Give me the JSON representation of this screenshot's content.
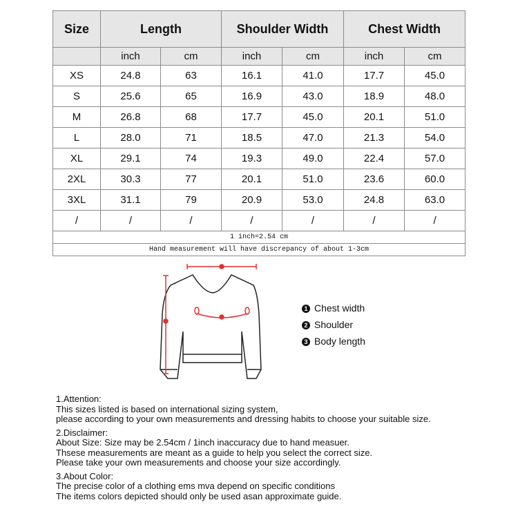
{
  "table": {
    "headers": [
      "Size",
      "Length",
      "Shoulder Width",
      "Chest Width"
    ],
    "units": [
      "inch",
      "cm",
      "inch",
      "cm",
      "inch",
      "cm"
    ],
    "rows": [
      [
        "XS",
        "24.8",
        "63",
        "16.1",
        "41.0",
        "17.7",
        "45.0"
      ],
      [
        "S",
        "25.6",
        "65",
        "16.9",
        "43.0",
        "18.9",
        "48.0"
      ],
      [
        "M",
        "26.8",
        "68",
        "17.7",
        "45.0",
        "20.1",
        "51.0"
      ],
      [
        "L",
        "28.0",
        "71",
        "18.5",
        "47.0",
        "21.3",
        "54.0"
      ],
      [
        "XL",
        "29.1",
        "74",
        "19.3",
        "49.0",
        "22.4",
        "57.0"
      ],
      [
        "2XL",
        "30.3",
        "77",
        "20.1",
        "51.0",
        "23.6",
        "60.0"
      ],
      [
        "3XL",
        "31.1",
        "79",
        "20.9",
        "53.0",
        "24.8",
        "63.0"
      ],
      [
        "/",
        "/",
        "/",
        "/",
        "/",
        "/",
        "/"
      ]
    ],
    "conversion": "1 inch=2.54 cm",
    "discrepancy": "Hand measurement will have discrepancy of about 1-3cm"
  },
  "legend": [
    {
      "num": "1",
      "label": "Chest width"
    },
    {
      "num": "2",
      "label": "Shoulder"
    },
    {
      "num": "3",
      "label": "Body length"
    }
  ],
  "measure_color": "#e03030",
  "notes": [
    {
      "title": "1.Attention:",
      "lines": [
        "This sizes listed is based on international sizing system,",
        "please according to your own measurements and dressing habits to choose your suitable size."
      ]
    },
    {
      "title": "2.Disclaimer:",
      "lines": [
        "About Size: Size may be 2.54cm / 1inch inaccuracy due to hand measuer.",
        "Thsese measurements are meant as a guide to help you select the correct size.",
        "Please take your own measurements and choose your size accordingly."
      ]
    },
    {
      "title": "3.About Color:",
      "lines": [
        "The precise color of a clothing ems mva depend on specific conditions",
        "The items colors depicted should only be used asan approximate guide."
      ]
    }
  ]
}
